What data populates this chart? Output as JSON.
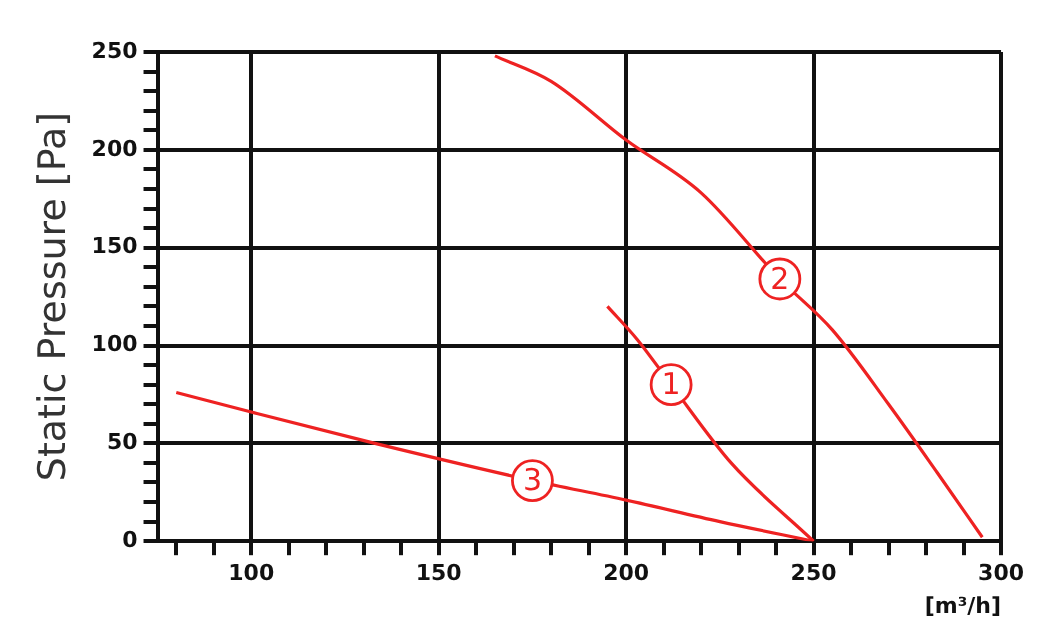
{
  "chart_data": {
    "type": "line",
    "ylabel": "Static Pressure [Pa]",
    "xlabel": "[m³/h]",
    "xlim": [
      75,
      300
    ],
    "xticks": [
      {
        "value": 80,
        "label": null
      },
      {
        "value": 90,
        "label": null
      },
      100,
      {
        "value": 110,
        "label": null
      },
      {
        "value": 120,
        "label": null
      },
      {
        "value": 130,
        "label": null
      },
      {
        "value": 140,
        "label": null
      },
      150,
      {
        "value": 160,
        "label": null
      },
      {
        "value": 170,
        "label": null
      },
      {
        "value": 180,
        "label": null
      },
      {
        "value": 190,
        "label": null
      },
      200,
      {
        "value": 210,
        "label": null
      },
      {
        "value": 220,
        "label": null
      },
      {
        "value": 230,
        "label": null
      },
      {
        "value": 240,
        "label": null
      },
      250,
      {
        "value": 260,
        "label": null
      },
      {
        "value": 270,
        "label": null
      },
      {
        "value": 280,
        "label": null
      },
      {
        "value": 290,
        "label": null
      },
      300
    ],
    "ylim": [
      0,
      250
    ],
    "yticks": [
      0,
      {
        "value": 10,
        "label": null
      },
      {
        "value": 20,
        "label": null
      },
      {
        "value": 30,
        "label": null
      },
      {
        "value": 40,
        "label": null
      },
      50,
      {
        "value": 60,
        "label": null
      },
      {
        "value": 70,
        "label": null
      },
      {
        "value": 80,
        "label": null
      },
      {
        "value": 90,
        "label": null
      },
      100,
      {
        "value": 110,
        "label": null
      },
      {
        "value": 120,
        "label": null
      },
      {
        "value": 130,
        "label": null
      },
      {
        "value": 140,
        "label": null
      },
      150,
      {
        "value": 160,
        "label": null
      },
      {
        "value": 170,
        "label": null
      },
      {
        "value": 180,
        "label": null
      },
      {
        "value": 190,
        "label": null
      },
      200,
      {
        "value": 210,
        "label": null
      },
      {
        "value": 220,
        "label": null
      },
      {
        "value": 230,
        "label": null
      },
      {
        "value": 240,
        "label": null
      },
      250
    ],
    "grid": true,
    "legend": false,
    "marker": "none",
    "line_style": "solid",
    "series": [
      {
        "name": "1",
        "color": "#ee2222",
        "x": [
          195,
          203,
          212,
          228,
          250
        ],
        "values": [
          120,
          103,
          80,
          40,
          0
        ]
      },
      {
        "name": "2",
        "color": "#ee2222",
        "x": [
          165,
          180,
          200,
          220,
          241,
          255,
          270,
          283,
          295
        ],
        "values": [
          248,
          235,
          205,
          178,
          134,
          108,
          70,
          35,
          2
        ]
      },
      {
        "name": "3",
        "color": "#ee2222",
        "x": [
          80,
          100,
          133,
          175,
          200,
          225,
          250
        ],
        "values": [
          76,
          66,
          50,
          31,
          21,
          10,
          0
        ]
      }
    ]
  }
}
